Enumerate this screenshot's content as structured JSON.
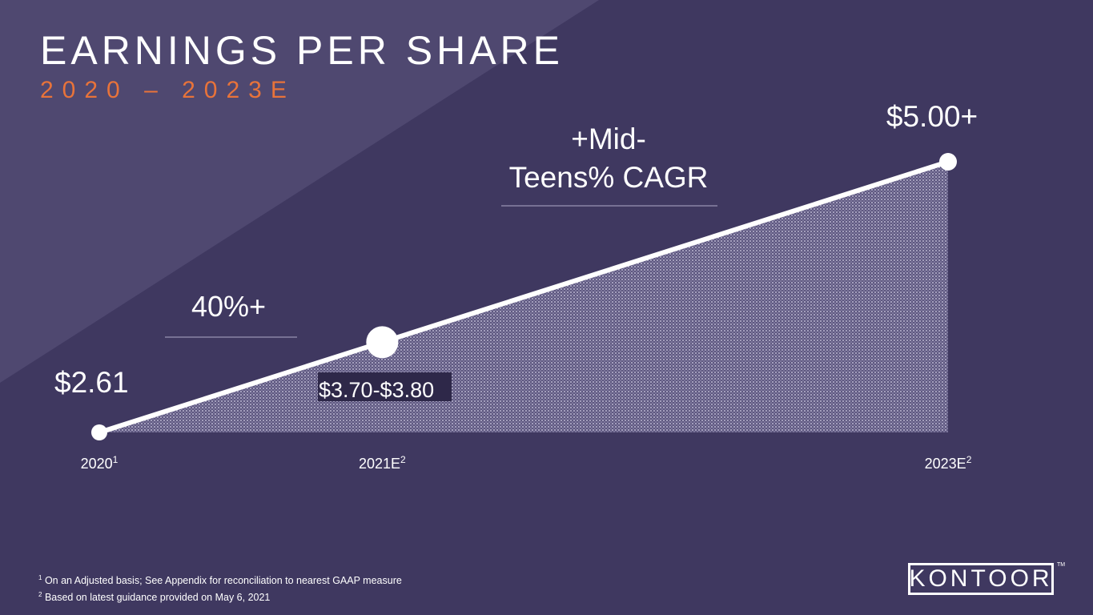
{
  "slide": {
    "title": "EARNINGS PER SHARE",
    "subtitle": "2020 – 2023E",
    "colors": {
      "background": "#3f3860",
      "background_accent": "#4f4870",
      "subtitle": "#e8733a",
      "line": "#ffffff",
      "fill_pattern": "#8c86a8"
    },
    "footnotes": [
      {
        "sup": "1",
        "text": "On an Adjusted basis; See Appendix for reconciliation to nearest GAAP measure"
      },
      {
        "sup": "2",
        "text": "Based on latest guidance provided on May 6, 2021"
      }
    ],
    "logo": {
      "text": "KONTOOR",
      "tm": "TM"
    }
  },
  "chart_data": {
    "type": "area",
    "x": [
      "2020",
      "2021E",
      "2023E"
    ],
    "x_superscripts": [
      "1",
      "2",
      "2"
    ],
    "y": [
      2.61,
      3.75,
      5.0
    ],
    "data_labels": [
      "$2.61",
      "$3.70-$3.80",
      "$5.00+"
    ],
    "y_range_label": {
      "low": 3.7,
      "high": 3.8
    },
    "annotations": [
      {
        "text": "40%+",
        "between": [
          "2020",
          "2021E"
        ]
      },
      {
        "text": "+Mid-\nTeens% CAGR",
        "between": [
          "2021E",
          "2023E"
        ]
      }
    ],
    "ylim": [
      2.61,
      5.0
    ],
    "grid": false
  }
}
